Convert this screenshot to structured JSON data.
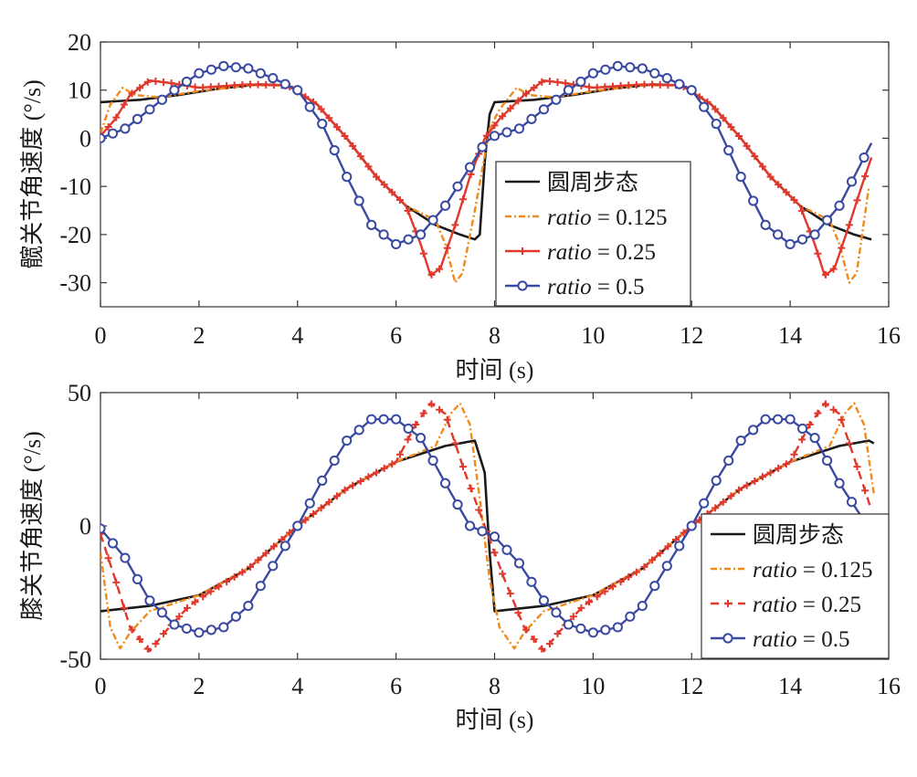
{
  "chart_data": [
    {
      "type": "line",
      "xlabel": "时间 (s)",
      "ylabel": "髋关节角速度 (°/s)",
      "xlim": [
        0,
        16
      ],
      "ylim": [
        -35,
        20
      ],
      "x_ticks": [
        "0",
        "2",
        "4",
        "6",
        "8",
        "10",
        "12",
        "14",
        "16"
      ],
      "y_ticks": [
        "20",
        "10",
        "0",
        "-10",
        "-20",
        "-30"
      ],
      "grid": false,
      "legend_position": "center-right",
      "legend": [
        {
          "prefix": "圆周步态",
          "italic": "",
          "suffix": ""
        },
        {
          "prefix": "",
          "italic": "ratio",
          "suffix": " = 0.125"
        },
        {
          "prefix": "",
          "italic": "ratio",
          "suffix": " = 0.25"
        },
        {
          "prefix": "",
          "italic": "ratio",
          "suffix": " = 0.5"
        }
      ],
      "series": [
        {
          "color": "#1a1a1a",
          "style": "solid",
          "marker": "none",
          "points": [
            [
              0,
              7.5
            ],
            [
              0.8,
              8
            ],
            [
              1.6,
              9
            ],
            [
              2.4,
              10.3
            ],
            [
              3.2,
              11.2
            ],
            [
              3.8,
              11
            ],
            [
              4.4,
              7
            ],
            [
              5,
              0
            ],
            [
              5.6,
              -8
            ],
            [
              6.2,
              -14
            ],
            [
              6.8,
              -18
            ],
            [
              7.3,
              -20
            ],
            [
              7.6,
              -21
            ],
            [
              7.7,
              -20
            ],
            [
              7.8,
              -5
            ],
            [
              7.9,
              5
            ],
            [
              8,
              7.5
            ],
            [
              8.8,
              8
            ],
            [
              9.6,
              9
            ],
            [
              10.4,
              10.3
            ],
            [
              11.2,
              11.2
            ],
            [
              11.8,
              11
            ],
            [
              12.4,
              7
            ],
            [
              13,
              0
            ],
            [
              13.6,
              -8
            ],
            [
              14.2,
              -14
            ],
            [
              14.8,
              -18
            ],
            [
              15.3,
              -20
            ],
            [
              15.65,
              -21
            ]
          ]
        },
        {
          "color": "#f08a1c",
          "style": "dashdot",
          "marker": "none",
          "points": [
            [
              0,
              1
            ],
            [
              0.2,
              7
            ],
            [
              0.45,
              10.5
            ],
            [
              0.7,
              9
            ],
            [
              1.2,
              8.5
            ],
            [
              2,
              9.8
            ],
            [
              3,
              11
            ],
            [
              3.8,
              11
            ],
            [
              4.4,
              7
            ],
            [
              5,
              0
            ],
            [
              5.6,
              -8
            ],
            [
              6.2,
              -14
            ],
            [
              6.8,
              -17
            ],
            [
              7.0,
              -22
            ],
            [
              7.2,
              -30
            ],
            [
              7.35,
              -28
            ],
            [
              7.6,
              -15
            ],
            [
              7.9,
              2
            ],
            [
              8.1,
              6
            ],
            [
              8.45,
              10.5
            ],
            [
              8.7,
              9
            ],
            [
              9.2,
              8.5
            ],
            [
              10,
              9.8
            ],
            [
              11,
              11
            ],
            [
              11.8,
              11
            ],
            [
              12.4,
              7
            ],
            [
              13,
              0
            ],
            [
              13.6,
              -8
            ],
            [
              14.2,
              -14
            ],
            [
              14.8,
              -17
            ],
            [
              15.0,
              -22
            ],
            [
              15.2,
              -30
            ],
            [
              15.35,
              -28
            ],
            [
              15.6,
              -10
            ]
          ]
        },
        {
          "color": "#e0382c",
          "style": "solid",
          "marker": "plus",
          "points": [
            [
              0,
              0.5
            ],
            [
              0.3,
              4
            ],
            [
              0.6,
              9
            ],
            [
              1,
              12
            ],
            [
              1.4,
              11.5
            ],
            [
              2,
              10.5
            ],
            [
              3,
              11.2
            ],
            [
              3.8,
              11
            ],
            [
              4.4,
              7
            ],
            [
              5,
              0
            ],
            [
              5.6,
              -8
            ],
            [
              6.2,
              -14
            ],
            [
              6.5,
              -22
            ],
            [
              6.7,
              -28.5
            ],
            [
              6.9,
              -27
            ],
            [
              7.2,
              -18
            ],
            [
              7.5,
              -8
            ],
            [
              7.8,
              0
            ],
            [
              8.1,
              4
            ],
            [
              8.6,
              9
            ],
            [
              9,
              12
            ],
            [
              9.4,
              11.5
            ],
            [
              10,
              10.5
            ],
            [
              11,
              11.2
            ],
            [
              11.8,
              11
            ],
            [
              12.4,
              7
            ],
            [
              13,
              0
            ],
            [
              13.6,
              -8
            ],
            [
              14.2,
              -14
            ],
            [
              14.5,
              -22
            ],
            [
              14.7,
              -28.5
            ],
            [
              14.9,
              -27
            ],
            [
              15.2,
              -18
            ],
            [
              15.45,
              -10
            ],
            [
              15.65,
              -4
            ]
          ]
        },
        {
          "color": "#3a4aa0",
          "style": "solid",
          "marker": "circle",
          "points": [
            [
              0,
              0
            ],
            [
              0.5,
              2
            ],
            [
              1,
              6
            ],
            [
              1.5,
              10
            ],
            [
              2,
              13.5
            ],
            [
              2.5,
              15
            ],
            [
              3,
              14.5
            ],
            [
              3.5,
              12.5
            ],
            [
              4,
              10
            ],
            [
              4.5,
              3
            ],
            [
              5,
              -8
            ],
            [
              5.5,
              -18
            ],
            [
              6,
              -22
            ],
            [
              6.5,
              -20
            ],
            [
              7,
              -14
            ],
            [
              7.5,
              -6
            ],
            [
              7.8,
              -1
            ],
            [
              8,
              0.5
            ],
            [
              8.5,
              2
            ],
            [
              9,
              6
            ],
            [
              9.5,
              10
            ],
            [
              10,
              13.5
            ],
            [
              10.5,
              15
            ],
            [
              11,
              14.5
            ],
            [
              11.5,
              12.5
            ],
            [
              12,
              10
            ],
            [
              12.5,
              3
            ],
            [
              13,
              -8
            ],
            [
              13.5,
              -18
            ],
            [
              14,
              -22
            ],
            [
              14.5,
              -20
            ],
            [
              15,
              -14
            ],
            [
              15.5,
              -4
            ],
            [
              15.65,
              -1
            ]
          ]
        }
      ]
    },
    {
      "type": "line",
      "xlabel": "时间 (s)",
      "ylabel": "膝关节角速度 (°/s)",
      "xlim": [
        0,
        16
      ],
      "ylim": [
        -50,
        50
      ],
      "x_ticks": [
        "0",
        "2",
        "4",
        "6",
        "8",
        "10",
        "12",
        "14",
        "16"
      ],
      "y_ticks": [
        "50",
        "0",
        "-50"
      ],
      "grid": false,
      "legend_position": "bottom-right",
      "legend": [
        {
          "prefix": "圆周步态",
          "italic": "",
          "suffix": ""
        },
        {
          "prefix": "",
          "italic": "ratio",
          "suffix": " = 0.125"
        },
        {
          "prefix": "",
          "italic": "ratio",
          "suffix": " = 0.25"
        },
        {
          "prefix": "",
          "italic": "ratio",
          "suffix": " = 0.5"
        }
      ],
      "series": [
        {
          "color": "#1a1a1a",
          "style": "solid",
          "marker": "none",
          "points": [
            [
              0,
              -32
            ],
            [
              1,
              -30
            ],
            [
              2,
              -26
            ],
            [
              3,
              -16
            ],
            [
              4,
              0
            ],
            [
              5,
              14
            ],
            [
              6,
              24
            ],
            [
              7,
              30
            ],
            [
              7.6,
              32
            ],
            [
              7.8,
              20
            ],
            [
              7.9,
              -10
            ],
            [
              8,
              -32
            ],
            [
              9,
              -30
            ],
            [
              10,
              -26
            ],
            [
              11,
              -16
            ],
            [
              12,
              0
            ],
            [
              13,
              14
            ],
            [
              14,
              24
            ],
            [
              15,
              30
            ],
            [
              15.6,
              32
            ],
            [
              15.7,
              31
            ]
          ]
        },
        {
          "color": "#f08a1c",
          "style": "dashdot",
          "marker": "none",
          "points": [
            [
              0,
              -10
            ],
            [
              0.2,
              -38
            ],
            [
              0.4,
              -46
            ],
            [
              0.6,
              -40
            ],
            [
              1,
              -32
            ],
            [
              2,
              -26
            ],
            [
              3,
              -16
            ],
            [
              4,
              0
            ],
            [
              5,
              14
            ],
            [
              6,
              24
            ],
            [
              6.8,
              30
            ],
            [
              7.1,
              42
            ],
            [
              7.3,
              46
            ],
            [
              7.5,
              38
            ],
            [
              7.7,
              10
            ],
            [
              7.9,
              -20
            ],
            [
              8.1,
              -38
            ],
            [
              8.4,
              -46
            ],
            [
              8.6,
              -40
            ],
            [
              9,
              -32
            ],
            [
              10,
              -26
            ],
            [
              11,
              -16
            ],
            [
              12,
              0
            ],
            [
              13,
              14
            ],
            [
              14,
              24
            ],
            [
              14.8,
              30
            ],
            [
              15.1,
              42
            ],
            [
              15.3,
              46
            ],
            [
              15.5,
              38
            ],
            [
              15.7,
              12
            ]
          ]
        },
        {
          "color": "#e0382c",
          "style": "dashed",
          "marker": "plus",
          "points": [
            [
              0,
              -3
            ],
            [
              0.3,
              -20
            ],
            [
              0.6,
              -38
            ],
            [
              1,
              -47
            ],
            [
              1.3,
              -40
            ],
            [
              1.8,
              -30
            ],
            [
              2.2,
              -25
            ],
            [
              3,
              -16
            ],
            [
              4,
              0
            ],
            [
              5,
              14
            ],
            [
              6,
              24
            ],
            [
              6.4,
              38
            ],
            [
              6.7,
              46
            ],
            [
              7,
              42
            ],
            [
              7.4,
              20
            ],
            [
              7.8,
              0
            ],
            [
              8.2,
              -20
            ],
            [
              8.6,
              -38
            ],
            [
              9,
              -47
            ],
            [
              9.3,
              -40
            ],
            [
              9.8,
              -30
            ],
            [
              10.2,
              -25
            ],
            [
              11,
              -16
            ],
            [
              12,
              0
            ],
            [
              13,
              14
            ],
            [
              14,
              24
            ],
            [
              14.4,
              38
            ],
            [
              14.7,
              46
            ],
            [
              15,
              42
            ],
            [
              15.4,
              20
            ],
            [
              15.65,
              6
            ]
          ]
        },
        {
          "color": "#3a4aa0",
          "style": "solid",
          "marker": "circle",
          "points": [
            [
              0,
              -1
            ],
            [
              0.5,
              -12
            ],
            [
              1,
              -28
            ],
            [
              1.5,
              -37
            ],
            [
              2,
              -40
            ],
            [
              2.5,
              -38
            ],
            [
              3,
              -30
            ],
            [
              3.5,
              -15
            ],
            [
              4,
              0
            ],
            [
              4.5,
              17
            ],
            [
              5,
              32
            ],
            [
              5.5,
              40
            ],
            [
              6,
              40
            ],
            [
              6.5,
              33
            ],
            [
              7,
              16
            ],
            [
              7.5,
              0
            ],
            [
              8,
              -4
            ],
            [
              8.5,
              -14
            ],
            [
              9,
              -28
            ],
            [
              9.5,
              -37
            ],
            [
              10,
              -40
            ],
            [
              10.5,
              -38
            ],
            [
              11,
              -30
            ],
            [
              11.5,
              -15
            ],
            [
              12,
              0
            ],
            [
              12.5,
              17
            ],
            [
              13,
              32
            ],
            [
              13.5,
              40
            ],
            [
              14,
              40
            ],
            [
              14.5,
              33
            ],
            [
              15,
              16
            ],
            [
              15.5,
              2
            ]
          ]
        }
      ]
    }
  ]
}
